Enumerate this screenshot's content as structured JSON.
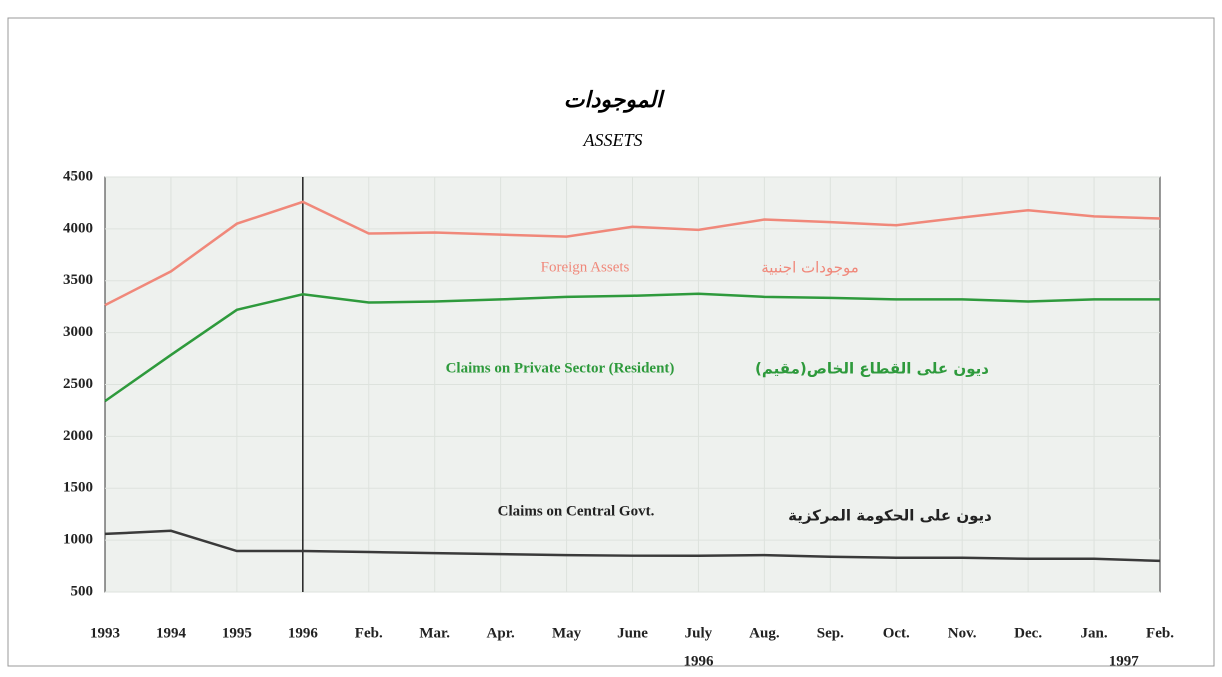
{
  "chart_data": {
    "type": "line",
    "title": "الموجودات",
    "subtitle": "ASSETS",
    "categories": [
      "1993",
      "1994",
      "1995",
      "1996",
      "Feb.",
      "Mar.",
      "Apr.",
      "May",
      "June",
      "July",
      "Aug.",
      "Sep.",
      "Oct.",
      "Nov.",
      "Dec.",
      "Jan.",
      "Feb."
    ],
    "x_group_labels": [
      "1996",
      "1997"
    ],
    "vertical_line_at": "1996",
    "series": [
      {
        "name": "Foreign Assets",
        "name_ar": "موجودات اجنبية",
        "color": "#f0887a",
        "values": [
          3265,
          3590,
          4050,
          4260,
          3955,
          3965,
          3945,
          3925,
          4020,
          3990,
          4090,
          4065,
          4035,
          4110,
          4180,
          4120,
          4100
        ]
      },
      {
        "name": "Claims on Private Sector (Resident)",
        "name_ar": "ديون على القطاع الخاص(مقيم)",
        "color": "#2e9a3c",
        "values": [
          2340,
          2785,
          3220,
          3370,
          3290,
          3300,
          3320,
          3345,
          3355,
          3375,
          3345,
          3335,
          3320,
          3320,
          3300,
          3320,
          3320
        ]
      },
      {
        "name": "Claims on Central Govt.",
        "name_ar": "ديون على الحكومة المركزية",
        "color": "#3a3a3a",
        "values": [
          1060,
          1090,
          895,
          895,
          885,
          875,
          865,
          855,
          850,
          850,
          855,
          840,
          830,
          830,
          820,
          820,
          800
        ]
      }
    ],
    "ylim": [
      500,
      4500
    ],
    "yticks": [
      500,
      1000,
      1500,
      2000,
      2500,
      3000,
      3500,
      4000,
      4500
    ],
    "grid": true
  }
}
